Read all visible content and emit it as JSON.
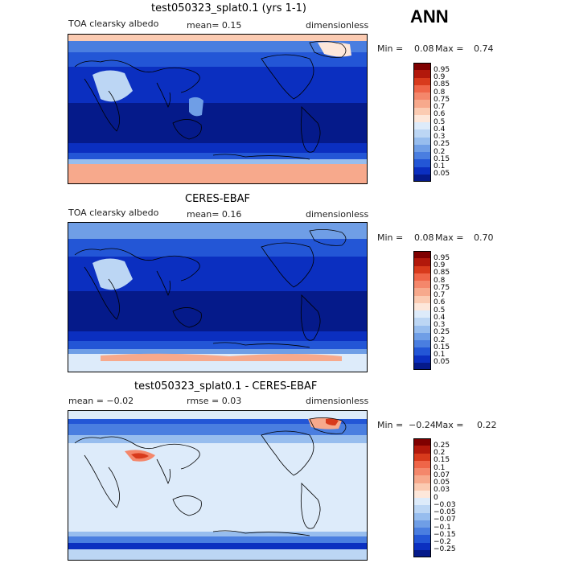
{
  "season": "ANN",
  "panels": [
    {
      "title": "test050323_splat0.1 (yrs 1-1)",
      "left_label": "TOA clearsky albedo",
      "mid_label": "mean=   0.15",
      "right_label": "dimensionless",
      "min_label": "Min =",
      "min_value": "0.08",
      "max_label": "Max =",
      "max_value": "0.74",
      "levels": [
        "0.95",
        "0.9",
        "0.85",
        "0.8",
        "0.75",
        "0.7",
        "0.6",
        "0.5",
        "0.4",
        "0.3",
        "0.25",
        "0.2",
        "0.15",
        "0.1",
        "0.05"
      ],
      "colors": [
        "#7f0000",
        "#b2180b",
        "#d83a1c",
        "#ef6548",
        "#f4876b",
        "#f7a98c",
        "#fbcbb2",
        "#fde7da",
        "#ddebfa",
        "#bcd6f4",
        "#97bdee",
        "#6f9ee6",
        "#4a7ee0",
        "#2356d6",
        "#0b2fc0",
        "#051a8a"
      ]
    },
    {
      "title": "CERES-EBAF",
      "left_label": "TOA clearsky albedo",
      "mid_label": "mean=   0.16",
      "right_label": "dimensionless",
      "min_label": "Min =",
      "min_value": "0.08",
      "max_label": "Max =",
      "max_value": "0.70",
      "levels": [
        "0.95",
        "0.9",
        "0.85",
        "0.8",
        "0.75",
        "0.7",
        "0.6",
        "0.5",
        "0.4",
        "0.3",
        "0.25",
        "0.2",
        "0.15",
        "0.1",
        "0.05"
      ],
      "colors": [
        "#7f0000",
        "#b2180b",
        "#d83a1c",
        "#ef6548",
        "#f4876b",
        "#f7a98c",
        "#fbcbb2",
        "#fde7da",
        "#ddebfa",
        "#bcd6f4",
        "#97bdee",
        "#6f9ee6",
        "#4a7ee0",
        "#2356d6",
        "#0b2fc0",
        "#051a8a"
      ]
    },
    {
      "title": "test050323_splat0.1 - CERES-EBAF",
      "left_label": "mean =  −0.02",
      "mid_label": "rmse =   0.03",
      "right_label": "dimensionless",
      "min_label": "Min =",
      "min_value": "−0.24",
      "max_label": "Max =",
      "max_value": "0.22",
      "levels": [
        "0.25",
        "0.2",
        "0.15",
        "0.1",
        "0.07",
        "0.05",
        "0.03",
        "0",
        "−0.03",
        "−0.05",
        "−0.07",
        "−0.1",
        "−0.15",
        "−0.2",
        "−0.25"
      ],
      "colors": [
        "#7f0000",
        "#b2180b",
        "#d83a1c",
        "#ef6548",
        "#f4876b",
        "#f7a98c",
        "#fbcbb2",
        "#fde7da",
        "#ddebfa",
        "#bcd6f4",
        "#97bdee",
        "#6f9ee6",
        "#4a7ee0",
        "#2356d6",
        "#0b2fc0",
        "#051a8a"
      ]
    }
  ],
  "chart_data": [
    {
      "type": "heatmap",
      "title": "test050323_splat0.1 (yrs 1-1)",
      "variable": "TOA clearsky albedo",
      "units": "dimensionless",
      "mean": 0.15,
      "min": 0.08,
      "max": 0.74,
      "contour_levels": [
        0.05,
        0.1,
        0.15,
        0.2,
        0.25,
        0.3,
        0.4,
        0.5,
        0.6,
        0.7,
        0.75,
        0.8,
        0.85,
        0.9,
        0.95
      ]
    },
    {
      "type": "heatmap",
      "title": "CERES-EBAF",
      "variable": "TOA clearsky albedo",
      "units": "dimensionless",
      "mean": 0.16,
      "min": 0.08,
      "max": 0.7,
      "contour_levels": [
        0.05,
        0.1,
        0.15,
        0.2,
        0.25,
        0.3,
        0.4,
        0.5,
        0.6,
        0.7,
        0.75,
        0.8,
        0.85,
        0.9,
        0.95
      ]
    },
    {
      "type": "heatmap",
      "title": "test050323_splat0.1 - CERES-EBAF",
      "units": "dimensionless",
      "mean": -0.02,
      "rmse": 0.03,
      "min": -0.24,
      "max": 0.22,
      "contour_levels": [
        -0.25,
        -0.2,
        -0.15,
        -0.1,
        -0.07,
        -0.05,
        -0.03,
        0,
        0.03,
        0.05,
        0.07,
        0.1,
        0.15,
        0.2,
        0.25
      ]
    }
  ]
}
